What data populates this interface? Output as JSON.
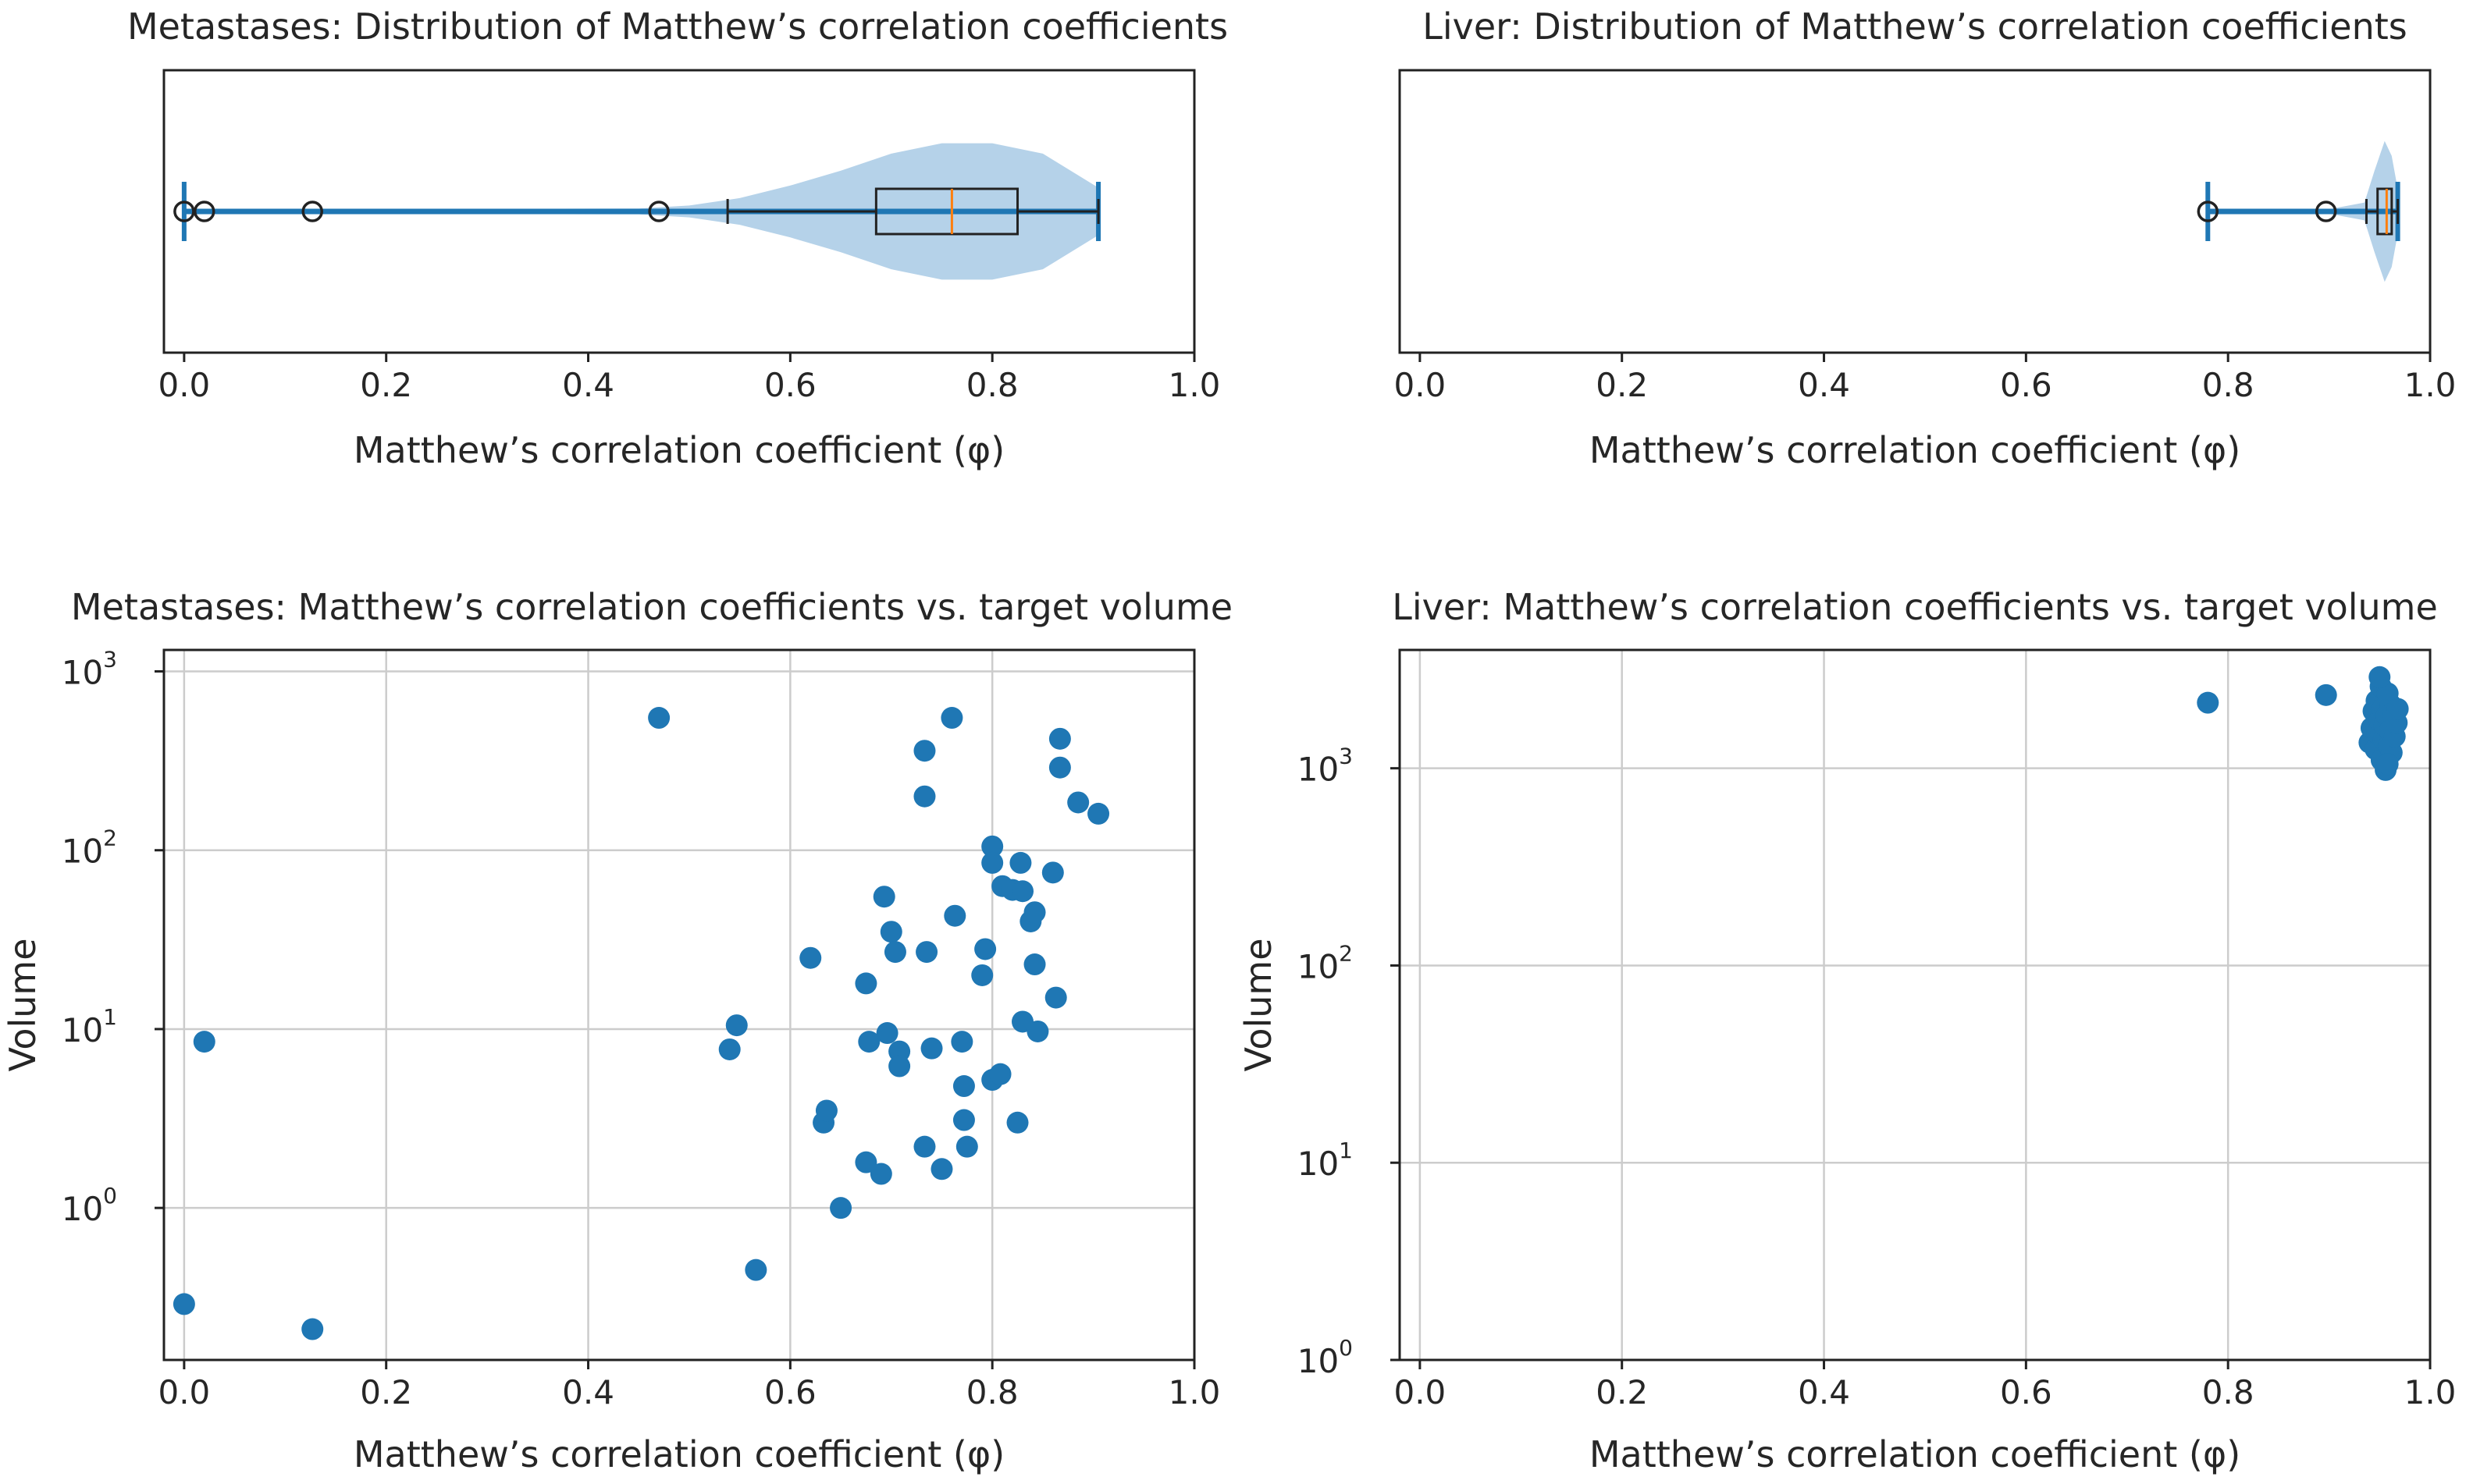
{
  "colors": {
    "blue": "#1f77b4",
    "violin_fill": "#b5d2e9",
    "median": "#ff7f0e",
    "box": "#222222",
    "grid": "#cccccc"
  },
  "chart_data": [
    {
      "id": "met_box",
      "type": "violin",
      "title": "Metastases: Distribution of Matthew’s correlation coefficients",
      "xlabel": "Matthew’s correlation coefficient (φ)",
      "xlim": [
        -0.02,
        1.0
      ],
      "xticks": [
        0.0,
        0.2,
        0.4,
        0.6,
        0.8,
        1.0
      ],
      "xtick_labels": [
        "0.0",
        "0.2",
        "0.4",
        "0.6",
        "0.8",
        "1.0"
      ],
      "min": 0.0,
      "max": 0.905,
      "q1": 0.685,
      "median": 0.76,
      "q3": 0.825,
      "whisker_low": 0.538,
      "whisker_high": 0.905,
      "outliers": [
        0.0,
        0.02,
        0.127,
        0.47
      ],
      "violin_profile": [
        [
          0.0,
          0.03
        ],
        [
          0.2,
          0.03
        ],
        [
          0.45,
          0.04
        ],
        [
          0.5,
          0.08
        ],
        [
          0.55,
          0.18
        ],
        [
          0.6,
          0.35
        ],
        [
          0.65,
          0.55
        ],
        [
          0.7,
          0.78
        ],
        [
          0.75,
          0.92
        ],
        [
          0.8,
          0.92
        ],
        [
          0.85,
          0.78
        ],
        [
          0.905,
          0.32
        ]
      ]
    },
    {
      "id": "liver_box",
      "type": "violin",
      "title": "Liver: Distribution of Matthew’s correlation coefficients",
      "xlabel": "Matthew’s correlation coefficient (φ)",
      "xlim": [
        -0.02,
        1.0
      ],
      "xticks": [
        0.0,
        0.2,
        0.4,
        0.6,
        0.8,
        1.0
      ],
      "xtick_labels": [
        "0.0",
        "0.2",
        "0.4",
        "0.6",
        "0.8",
        "1.0"
      ],
      "min": 0.78,
      "max": 0.968,
      "q1": 0.948,
      "median": 0.957,
      "q3": 0.962,
      "whisker_low": 0.937,
      "whisker_high": 0.968,
      "outliers": [
        0.78,
        0.897
      ],
      "violin_profile": [
        [
          0.78,
          0.03
        ],
        [
          0.9,
          0.03
        ],
        [
          0.935,
          0.12
        ],
        [
          0.945,
          0.55
        ],
        [
          0.955,
          0.95
        ],
        [
          0.962,
          0.75
        ],
        [
          0.968,
          0.3
        ]
      ]
    },
    {
      "id": "met_scatter",
      "type": "scatter",
      "title": "Metastases: Matthew’s correlation coefficients vs. target volume",
      "xlabel": "Matthew’s correlation coefficient (φ)",
      "ylabel": "Volume",
      "yscale": "log",
      "xlim": [
        -0.02,
        1.0
      ],
      "ylim_log10": [
        -0.85,
        3.12
      ],
      "xticks": [
        0.0,
        0.2,
        0.4,
        0.6,
        0.8,
        1.0
      ],
      "xtick_labels": [
        "0.0",
        "0.2",
        "0.4",
        "0.6",
        "0.8",
        "1.0"
      ],
      "yticks_log10": [
        0,
        1,
        2,
        3
      ],
      "ytick_labels": [
        {
          "base": "10",
          "exp": "0"
        },
        {
          "base": "10",
          "exp": "1"
        },
        {
          "base": "10",
          "exp": "2"
        },
        {
          "base": "10",
          "exp": "3"
        }
      ],
      "points": [
        [
          0.0,
          0.29
        ],
        [
          0.02,
          8.5
        ],
        [
          0.127,
          0.21
        ],
        [
          0.47,
          550
        ],
        [
          0.54,
          7.7
        ],
        [
          0.547,
          10.5
        ],
        [
          0.566,
          0.45
        ],
        [
          0.62,
          25
        ],
        [
          0.633,
          3.0
        ],
        [
          0.636,
          3.5
        ],
        [
          0.65,
          1.0
        ],
        [
          0.675,
          18
        ],
        [
          0.675,
          1.8
        ],
        [
          0.678,
          8.5
        ],
        [
          0.69,
          1.55
        ],
        [
          0.693,
          55
        ],
        [
          0.696,
          9.5
        ],
        [
          0.7,
          35
        ],
        [
          0.704,
          27
        ],
        [
          0.708,
          7.5
        ],
        [
          0.708,
          6.2
        ],
        [
          0.733,
          2.2
        ],
        [
          0.733,
          200
        ],
        [
          0.733,
          360
        ],
        [
          0.735,
          27
        ],
        [
          0.74,
          7.8
        ],
        [
          0.75,
          1.65
        ],
        [
          0.76,
          550
        ],
        [
          0.763,
          43
        ],
        [
          0.77,
          8.5
        ],
        [
          0.772,
          3.1
        ],
        [
          0.772,
          4.8
        ],
        [
          0.775,
          2.2
        ],
        [
          0.79,
          20
        ],
        [
          0.793,
          28
        ],
        [
          0.8,
          105
        ],
        [
          0.8,
          85
        ],
        [
          0.8,
          5.2
        ],
        [
          0.808,
          5.6
        ],
        [
          0.81,
          63
        ],
        [
          0.82,
          60
        ],
        [
          0.825,
          3.0
        ],
        [
          0.828,
          85
        ],
        [
          0.83,
          59
        ],
        [
          0.83,
          11
        ],
        [
          0.838,
          40
        ],
        [
          0.842,
          45
        ],
        [
          0.842,
          23
        ],
        [
          0.845,
          9.7
        ],
        [
          0.86,
          75
        ],
        [
          0.863,
          15
        ],
        [
          0.867,
          290
        ],
        [
          0.867,
          420
        ],
        [
          0.885,
          185
        ],
        [
          0.905,
          160
        ]
      ]
    },
    {
      "id": "liver_scatter",
      "type": "scatter",
      "title": "Liver: Matthew’s correlation coefficients vs. target volume",
      "xlabel": "Matthew’s correlation coefficient (φ)",
      "ylabel": "Volume",
      "yscale": "log",
      "xlim": [
        -0.02,
        1.0
      ],
      "ylim_log10": [
        0.0,
        3.6
      ],
      "xticks": [
        0.0,
        0.2,
        0.4,
        0.6,
        0.8,
        1.0
      ],
      "xtick_labels": [
        "0.0",
        "0.2",
        "0.4",
        "0.6",
        "0.8",
        "1.0"
      ],
      "yticks_log10": [
        0,
        1,
        2,
        3
      ],
      "ytick_labels": [
        {
          "base": "10",
          "exp": "0"
        },
        {
          "base": "10",
          "exp": "1"
        },
        {
          "base": "10",
          "exp": "2"
        },
        {
          "base": "10",
          "exp": "3"
        }
      ],
      "points": [
        [
          0.78,
          2150
        ],
        [
          0.897,
          2350
        ],
        [
          0.94,
          1350
        ],
        [
          0.942,
          1600
        ],
        [
          0.944,
          1950
        ],
        [
          0.946,
          1250
        ],
        [
          0.947,
          2200
        ],
        [
          0.948,
          1500
        ],
        [
          0.95,
          1750
        ],
        [
          0.951,
          2600
        ],
        [
          0.952,
          1100
        ],
        [
          0.953,
          2000
        ],
        [
          0.954,
          1400
        ],
        [
          0.955,
          1650
        ],
        [
          0.956,
          980
        ],
        [
          0.957,
          1850
        ],
        [
          0.958,
          2400
        ],
        [
          0.959,
          1300
        ],
        [
          0.96,
          1550
        ],
        [
          0.961,
          2100
        ],
        [
          0.962,
          1200
        ],
        [
          0.963,
          1900
        ],
        [
          0.965,
          1450
        ],
        [
          0.967,
          1700
        ],
        [
          0.968,
          2000
        ],
        [
          0.95,
          2900
        ],
        [
          0.958,
          1050
        ]
      ]
    }
  ]
}
